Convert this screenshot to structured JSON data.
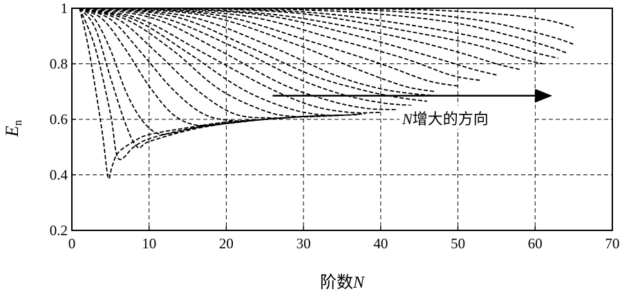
{
  "chart_data": {
    "type": "line",
    "title": "",
    "xlabel": "阶数",
    "xlabel_var": "N",
    "ylabel": "E",
    "ylabel_sub": "n",
    "xlim": [
      0,
      70
    ],
    "ylim": [
      0.2,
      1
    ],
    "xticks": [
      0,
      10,
      20,
      30,
      40,
      50,
      60,
      70
    ],
    "yticks": [
      0.2,
      0.4,
      0.6,
      0.8,
      1
    ],
    "ytick_labels": [
      "0.2",
      "0.4",
      "0.6",
      "0.8",
      "1"
    ],
    "grid": true,
    "line_style": "dashed",
    "line_color": "#000000",
    "annotation": {
      "var": "N",
      "text": "增大的方向",
      "arrow_from": [
        26,
        0.685
      ],
      "arrow_to": [
        62,
        0.685
      ]
    },
    "series": [
      {
        "x": [
          1,
          2,
          3,
          4,
          4.7,
          5.2,
          6,
          8,
          10,
          15,
          20,
          25,
          30
        ],
        "y": [
          1,
          0.88,
          0.72,
          0.54,
          0.39,
          0.43,
          0.48,
          0.52,
          0.545,
          0.57,
          0.59,
          0.6,
          0.61
        ]
      },
      {
        "x": [
          1,
          3,
          5,
          6,
          8,
          10,
          15,
          20,
          25,
          30,
          35
        ],
        "y": [
          1,
          0.86,
          0.62,
          0.46,
          0.5,
          0.53,
          0.565,
          0.585,
          0.6,
          0.61,
          0.615
        ]
      },
      {
        "x": [
          1,
          3,
          5,
          7,
          8.5,
          10,
          15,
          20,
          25,
          30,
          35
        ],
        "y": [
          1,
          0.93,
          0.75,
          0.58,
          0.5,
          0.52,
          0.56,
          0.585,
          0.6,
          0.61,
          0.615
        ]
      },
      {
        "x": [
          1,
          3,
          5,
          7,
          9,
          11,
          13,
          16,
          20,
          25,
          30,
          35
        ],
        "y": [
          1,
          0.96,
          0.85,
          0.7,
          0.6,
          0.55,
          0.55,
          0.57,
          0.59,
          0.6,
          0.61,
          0.615
        ]
      },
      {
        "x": [
          1,
          4,
          7,
          10,
          13,
          16,
          20,
          25,
          30,
          35
        ],
        "y": [
          1,
          0.96,
          0.85,
          0.72,
          0.62,
          0.58,
          0.585,
          0.6,
          0.61,
          0.615
        ]
      },
      {
        "x": [
          1,
          5,
          9,
          13,
          17,
          21,
          25,
          30,
          35
        ],
        "y": [
          1,
          0.96,
          0.84,
          0.71,
          0.62,
          0.595,
          0.6,
          0.61,
          0.615
        ]
      },
      {
        "x": [
          1,
          6,
          11,
          16,
          21,
          26,
          30,
          35
        ],
        "y": [
          1,
          0.96,
          0.84,
          0.71,
          0.62,
          0.605,
          0.61,
          0.615
        ]
      },
      {
        "x": [
          1,
          7,
          13,
          19,
          25,
          29,
          33,
          37
        ],
        "y": [
          1,
          0.96,
          0.85,
          0.71,
          0.63,
          0.61,
          0.612,
          0.617
        ]
      },
      {
        "x": [
          1,
          8,
          15,
          22,
          28,
          33,
          38
        ],
        "y": [
          1,
          0.96,
          0.84,
          0.71,
          0.64,
          0.615,
          0.62
        ]
      },
      {
        "x": [
          2,
          9,
          17,
          25,
          31,
          36,
          40
        ],
        "y": [
          1,
          0.96,
          0.84,
          0.72,
          0.65,
          0.625,
          0.625
        ]
      },
      {
        "x": [
          3,
          11,
          19,
          27,
          33,
          38,
          42
        ],
        "y": [
          1,
          0.96,
          0.85,
          0.73,
          0.67,
          0.64,
          0.635
        ]
      },
      {
        "x": [
          4,
          12,
          21,
          29,
          35,
          40,
          44
        ],
        "y": [
          1,
          0.965,
          0.86,
          0.75,
          0.69,
          0.66,
          0.65
        ]
      },
      {
        "x": [
          5,
          14,
          23,
          31,
          37,
          42,
          46
        ],
        "y": [
          1,
          0.965,
          0.86,
          0.76,
          0.71,
          0.68,
          0.665
        ]
      },
      {
        "x": [
          6,
          16,
          26,
          34,
          40,
          45,
          48
        ],
        "y": [
          1,
          0.965,
          0.86,
          0.76,
          0.71,
          0.69,
          0.685
        ]
      },
      {
        "x": [
          7,
          18,
          29,
          37,
          43,
          47
        ],
        "y": [
          1,
          0.97,
          0.87,
          0.78,
          0.72,
          0.7
        ]
      },
      {
        "x": [
          9,
          20,
          31,
          40,
          46,
          50
        ],
        "y": [
          1,
          0.97,
          0.88,
          0.8,
          0.74,
          0.72
        ]
      },
      {
        "x": [
          10,
          23,
          34,
          43,
          49,
          53
        ],
        "y": [
          1,
          0.97,
          0.89,
          0.82,
          0.76,
          0.74
        ]
      },
      {
        "x": [
          12,
          25,
          37,
          46,
          52,
          55
        ],
        "y": [
          1,
          0.975,
          0.9,
          0.83,
          0.78,
          0.76
        ]
      },
      {
        "x": [
          14,
          27,
          40,
          49,
          55,
          58
        ],
        "y": [
          1,
          0.975,
          0.91,
          0.85,
          0.8,
          0.78
        ]
      },
      {
        "x": [
          17,
          30,
          43,
          52,
          58,
          61
        ],
        "y": [
          1,
          0.98,
          0.92,
          0.87,
          0.82,
          0.8
        ]
      },
      {
        "x": [
          20,
          33,
          46,
          55,
          60,
          63
        ],
        "y": [
          1,
          0.98,
          0.93,
          0.88,
          0.84,
          0.82
        ]
      },
      {
        "x": [
          23,
          37,
          49,
          57,
          62,
          64
        ],
        "y": [
          1,
          0.985,
          0.95,
          0.9,
          0.86,
          0.84
        ]
      },
      {
        "x": [
          27,
          41,
          52,
          59,
          63,
          65
        ],
        "y": [
          1,
          0.99,
          0.96,
          0.92,
          0.89,
          0.87
        ]
      },
      {
        "x": [
          31,
          45,
          55,
          61,
          64,
          65
        ],
        "y": [
          1,
          0.995,
          0.98,
          0.96,
          0.94,
          0.93
        ]
      }
    ]
  }
}
